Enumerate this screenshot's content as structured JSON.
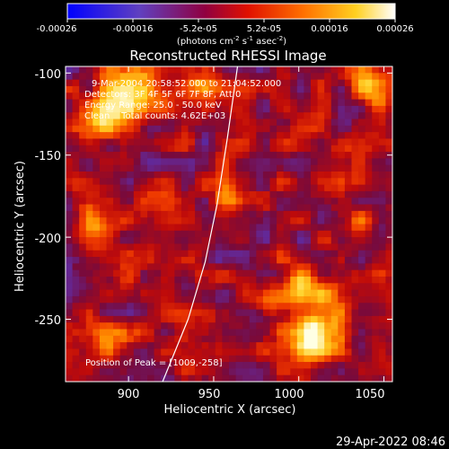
{
  "colorbar": {
    "ticks": [
      "-0.00026",
      "-0.00016",
      "-5.2e-05",
      "5.2e-05",
      "0.00016",
      "0.00026"
    ],
    "units": "(photons cm",
    "units_sup1": "-2",
    "units_mid": " s",
    "units_sup2": "-1",
    "units_end": " asec",
    "units_sup3": "-2",
    "units_close": ")"
  },
  "chart_data": {
    "type": "heatmap",
    "title": "Reconstructed RHESSI Image",
    "xlabel": "Heliocentric X (arcsec)",
    "ylabel": "Heliocentric Y (arcsec)",
    "xlim": [
      863,
      1055
    ],
    "ylim": [
      -288,
      -96
    ],
    "xticks": [
      900,
      950,
      1000,
      1050
    ],
    "yticks": [
      -100,
      -150,
      -200,
      -250
    ],
    "xtick_labels": [
      "900",
      "950",
      "1000",
      "1050"
    ],
    "ytick_labels": [
      "-100",
      "-150",
      "-200",
      "-250"
    ],
    "colormap": "rhessi-flux (blue-purple-red-orange-yellow-white)",
    "zlim": [
      -0.00026,
      0.00026
    ],
    "limb_curve": [
      [
        920,
        -288
      ],
      [
        935,
        -250
      ],
      [
        945,
        -215
      ],
      [
        952,
        -180
      ],
      [
        958,
        -140
      ],
      [
        964,
        -96
      ]
    ],
    "peak": [
      1009,
      -258
    ],
    "annotations": {
      "time_range": "9-Mar-2004 20:58:52.000 to 21:04:52.000",
      "detectors": "Detectors: 3F 4F 5F 6F 7F 8F, Att 0",
      "energy": "Energy Range: 25.0 - 50.0 keV",
      "clean": "Clean    Total counts: 4.62E+03",
      "peak_label": "Position of Peak = [1009,-258]"
    }
  },
  "footer": {
    "date": "29-Apr-2022 08:46"
  }
}
